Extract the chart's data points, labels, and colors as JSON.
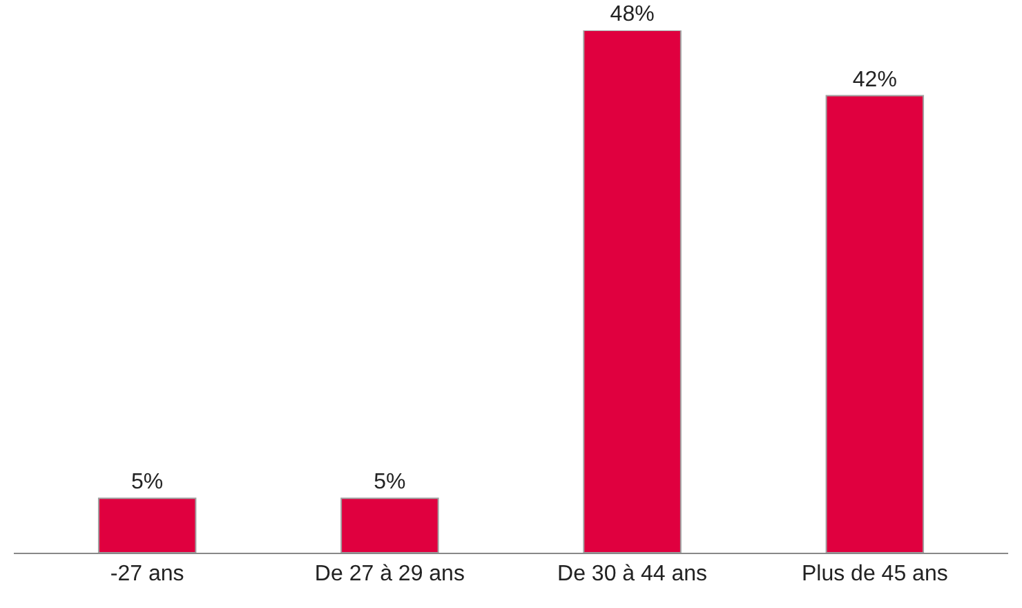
{
  "chart_data": {
    "type": "bar",
    "categories": [
      "-27 ans",
      "De 27 à 29 ans",
      "De 30 à 44 ans",
      "Plus de 45 ans"
    ],
    "values": [
      5,
      5,
      48,
      42
    ],
    "value_labels": [
      "5%",
      "5%",
      "48%",
      "42%"
    ],
    "color": "#e0003f"
  }
}
